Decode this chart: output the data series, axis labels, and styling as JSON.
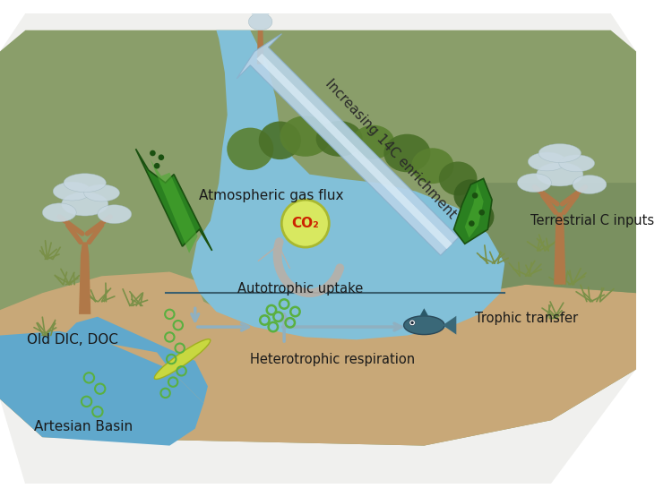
{
  "label_14c": "Increasing 14C enrichment",
  "label_atm": "Atmospheric gas flux",
  "label_co2": "CO₂",
  "label_terrestrial": "Terrestrial C inputs",
  "label_autotrophic": "Autotrophic uptake",
  "label_heterotrophic": "Heterotrophic respiration",
  "label_trophic": "Trophic transfer",
  "label_old_dic": "Old DIC, DOC",
  "label_artesian": "Artesian Basin",
  "col_bg": "#e8e8e0",
  "col_green_land": "#8a9e6a",
  "col_green_land2": "#7a9060",
  "col_brown": "#c8a878",
  "col_water": "#82c0d8",
  "col_water_art": "#60a8cc",
  "col_water_deep": "#5090b8",
  "col_green_reed": "#5a8a30",
  "col_green_arrow": "#2a7a20",
  "col_green_leaf": "#4aaa28",
  "col_14c_arrow": "#b0cce0",
  "col_gray_arrow": "#b8b0a8",
  "col_co2_fill": "#d8e860",
  "col_co2_border": "#a8b830",
  "col_co2_text": "#cc2200",
  "col_trunk": "#b07848",
  "col_canopy": "#c8d8e0",
  "col_label": "#2a2a2a",
  "col_line": "#406070"
}
